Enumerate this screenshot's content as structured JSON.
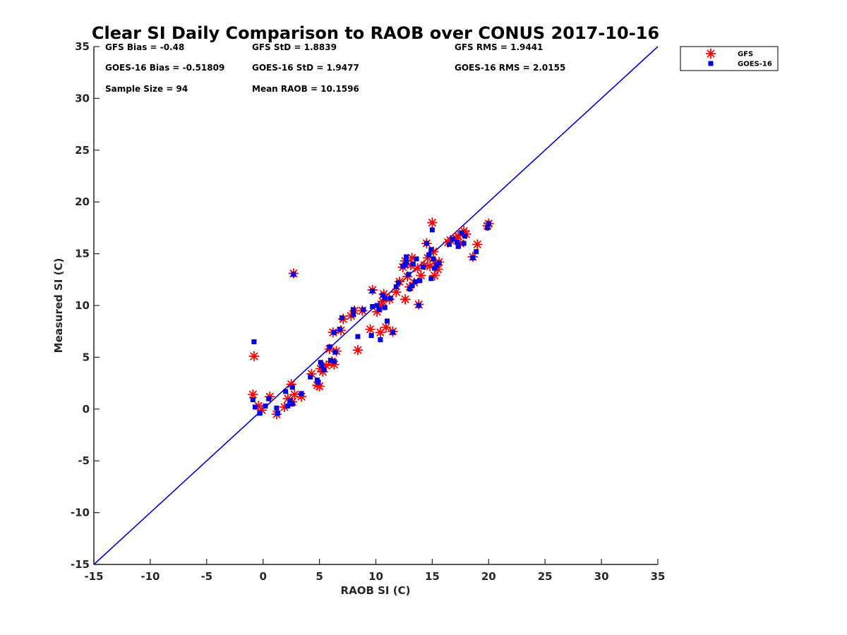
{
  "chart_data": {
    "type": "scatter",
    "title": "Clear SI Daily Comparison to RAOB over CONUS 2017-10-16",
    "xlabel": "RAOB SI (C)",
    "ylabel": "Measured SI (C)",
    "xlim": [
      -15,
      35
    ],
    "ylim": [
      -15,
      35
    ],
    "xticks": [
      -15,
      -10,
      -5,
      0,
      5,
      10,
      15,
      20,
      25,
      30,
      35
    ],
    "yticks": [
      -15,
      -10,
      -5,
      0,
      5,
      10,
      15,
      20,
      25,
      30,
      35
    ],
    "grid": false,
    "legend_position": "outside-top-right",
    "reference_line": {
      "from": [
        -15,
        -15
      ],
      "to": [
        35,
        35
      ],
      "color": "#0000cc"
    },
    "stats": [
      {
        "key": "gfs-bias",
        "text": "GFS Bias = -0.48"
      },
      {
        "key": "gfs-std",
        "text": "GFS StD = 1.8839"
      },
      {
        "key": "gfs-rms",
        "text": "GFS RMS = 1.9441"
      },
      {
        "key": "goes-bias",
        "text": "GOES-16 Bias = -0.51809"
      },
      {
        "key": "goes-std",
        "text": "GOES-16 StD = 1.9477"
      },
      {
        "key": "goes-rms",
        "text": "GOES-16 RMS = 2.0155"
      },
      {
        "key": "sample-size",
        "text": "Sample Size = 94"
      },
      {
        "key": "mean-raob",
        "text": "Mean RAOB = 10.1596"
      }
    ],
    "series": [
      {
        "name": "GFS",
        "marker": "asterisk",
        "color": "#ff0000",
        "points": [
          [
            -0.8,
            5.1
          ],
          [
            -0.9,
            1.4
          ],
          [
            -0.4,
            0.3
          ],
          [
            -0.1,
            -0.1
          ],
          [
            0.6,
            1.2
          ],
          [
            1.2,
            -0.5
          ],
          [
            1.9,
            0.2
          ],
          [
            2.2,
            1.0
          ],
          [
            2.5,
            2.4
          ],
          [
            2.6,
            0.7
          ],
          [
            2.7,
            13.1
          ],
          [
            2.8,
            1.4
          ],
          [
            3.4,
            1.2
          ],
          [
            4.3,
            3.4
          ],
          [
            4.8,
            2.3
          ],
          [
            5.0,
            2.2
          ],
          [
            5.1,
            3.9
          ],
          [
            5.3,
            3.6
          ],
          [
            5.6,
            4.2
          ],
          [
            5.9,
            5.8
          ],
          [
            6.1,
            4.6
          ],
          [
            6.3,
            4.3
          ],
          [
            6.2,
            7.4
          ],
          [
            6.5,
            5.6
          ],
          [
            6.9,
            7.6
          ],
          [
            7.1,
            8.7
          ],
          [
            7.8,
            9.0
          ],
          [
            8.1,
            9.5
          ],
          [
            8.4,
            5.7
          ],
          [
            8.8,
            9.5
          ],
          [
            9.5,
            7.7
          ],
          [
            9.7,
            11.5
          ],
          [
            10.1,
            9.4
          ],
          [
            10.4,
            7.4
          ],
          [
            10.5,
            9.9
          ],
          [
            10.6,
            10.4
          ],
          [
            10.7,
            11.1
          ],
          [
            10.9,
            7.9
          ],
          [
            11.2,
            10.6
          ],
          [
            11.5,
            7.5
          ],
          [
            11.8,
            11.3
          ],
          [
            12.1,
            12.3
          ],
          [
            12.4,
            13.7
          ],
          [
            12.6,
            10.6
          ],
          [
            12.6,
            14.3
          ],
          [
            12.8,
            12.8
          ],
          [
            13.0,
            11.8
          ],
          [
            13.1,
            13.9
          ],
          [
            13.2,
            14.6
          ],
          [
            13.4,
            12.2
          ],
          [
            13.7,
            13.6
          ],
          [
            13.8,
            10.1
          ],
          [
            14.0,
            12.9
          ],
          [
            14.3,
            13.9
          ],
          [
            14.5,
            16.0
          ],
          [
            14.6,
            14.6
          ],
          [
            14.8,
            13.8
          ],
          [
            15.0,
            18.0
          ],
          [
            15.1,
            15.2
          ],
          [
            15.2,
            12.9
          ],
          [
            15.3,
            14.0
          ],
          [
            15.5,
            13.5
          ],
          [
            15.6,
            14.2
          ],
          [
            16.4,
            16.1
          ],
          [
            16.6,
            16.3
          ],
          [
            17.1,
            16.5
          ],
          [
            17.3,
            16.7
          ],
          [
            17.5,
            16.0
          ],
          [
            17.8,
            17.2
          ],
          [
            18.0,
            16.9
          ],
          [
            18.6,
            14.7
          ],
          [
            19.0,
            15.9
          ],
          [
            19.9,
            17.7
          ],
          [
            20.0,
            17.9
          ]
        ]
      },
      {
        "name": "GOES-16",
        "marker": "square",
        "color": "#0000dd",
        "points": [
          [
            -0.8,
            6.5
          ],
          [
            -0.9,
            0.9
          ],
          [
            -0.7,
            0.2
          ],
          [
            -0.3,
            -0.4
          ],
          [
            0.2,
            0.3
          ],
          [
            0.5,
            1.0
          ],
          [
            1.2,
            0.1
          ],
          [
            1.3,
            -0.4
          ],
          [
            2.0,
            1.7
          ],
          [
            2.2,
            0.3
          ],
          [
            2.4,
            0.8
          ],
          [
            2.6,
            0.5
          ],
          [
            2.6,
            2.1
          ],
          [
            2.7,
            13.0
          ],
          [
            3.4,
            1.5
          ],
          [
            4.2,
            3.1
          ],
          [
            4.8,
            2.8
          ],
          [
            4.9,
            2.6
          ],
          [
            5.1,
            4.5
          ],
          [
            5.2,
            4.2
          ],
          [
            5.4,
            3.8
          ],
          [
            5.9,
            6.0
          ],
          [
            6.0,
            4.7
          ],
          [
            6.3,
            4.6
          ],
          [
            6.3,
            7.4
          ],
          [
            6.4,
            5.5
          ],
          [
            6.8,
            7.7
          ],
          [
            7.0,
            8.8
          ],
          [
            8.0,
            9.1
          ],
          [
            8.0,
            9.6
          ],
          [
            8.4,
            7.0
          ],
          [
            8.9,
            9.6
          ],
          [
            9.6,
            7.1
          ],
          [
            9.7,
            11.4
          ],
          [
            9.7,
            9.9
          ],
          [
            10.1,
            10.0
          ],
          [
            10.3,
            9.6
          ],
          [
            10.4,
            6.7
          ],
          [
            10.6,
            11.0
          ],
          [
            10.8,
            10.7
          ],
          [
            10.8,
            9.8
          ],
          [
            11.0,
            8.5
          ],
          [
            11.3,
            10.7
          ],
          [
            11.5,
            7.4
          ],
          [
            11.8,
            11.8
          ],
          [
            12.0,
            12.2
          ],
          [
            12.4,
            13.8
          ],
          [
            12.6,
            13.9
          ],
          [
            12.7,
            14.2
          ],
          [
            12.7,
            14.7
          ],
          [
            12.9,
            13.0
          ],
          [
            13.0,
            11.6
          ],
          [
            13.2,
            11.9
          ],
          [
            13.3,
            14.0
          ],
          [
            13.5,
            12.3
          ],
          [
            13.6,
            14.5
          ],
          [
            13.8,
            10.0
          ],
          [
            13.9,
            12.4
          ],
          [
            14.2,
            13.7
          ],
          [
            14.5,
            16.0
          ],
          [
            14.7,
            14.9
          ],
          [
            14.9,
            15.4
          ],
          [
            14.9,
            12.6
          ],
          [
            15.0,
            17.3
          ],
          [
            15.1,
            14.5
          ],
          [
            15.2,
            13.6
          ],
          [
            15.4,
            13.9
          ],
          [
            15.6,
            14.1
          ],
          [
            16.5,
            15.9
          ],
          [
            16.8,
            16.4
          ],
          [
            17.2,
            16.1
          ],
          [
            17.3,
            15.7
          ],
          [
            17.6,
            17.0
          ],
          [
            17.8,
            16.0
          ],
          [
            17.9,
            16.7
          ],
          [
            18.6,
            14.6
          ],
          [
            18.9,
            15.2
          ],
          [
            19.9,
            17.5
          ],
          [
            20.0,
            17.9
          ]
        ]
      }
    ]
  }
}
